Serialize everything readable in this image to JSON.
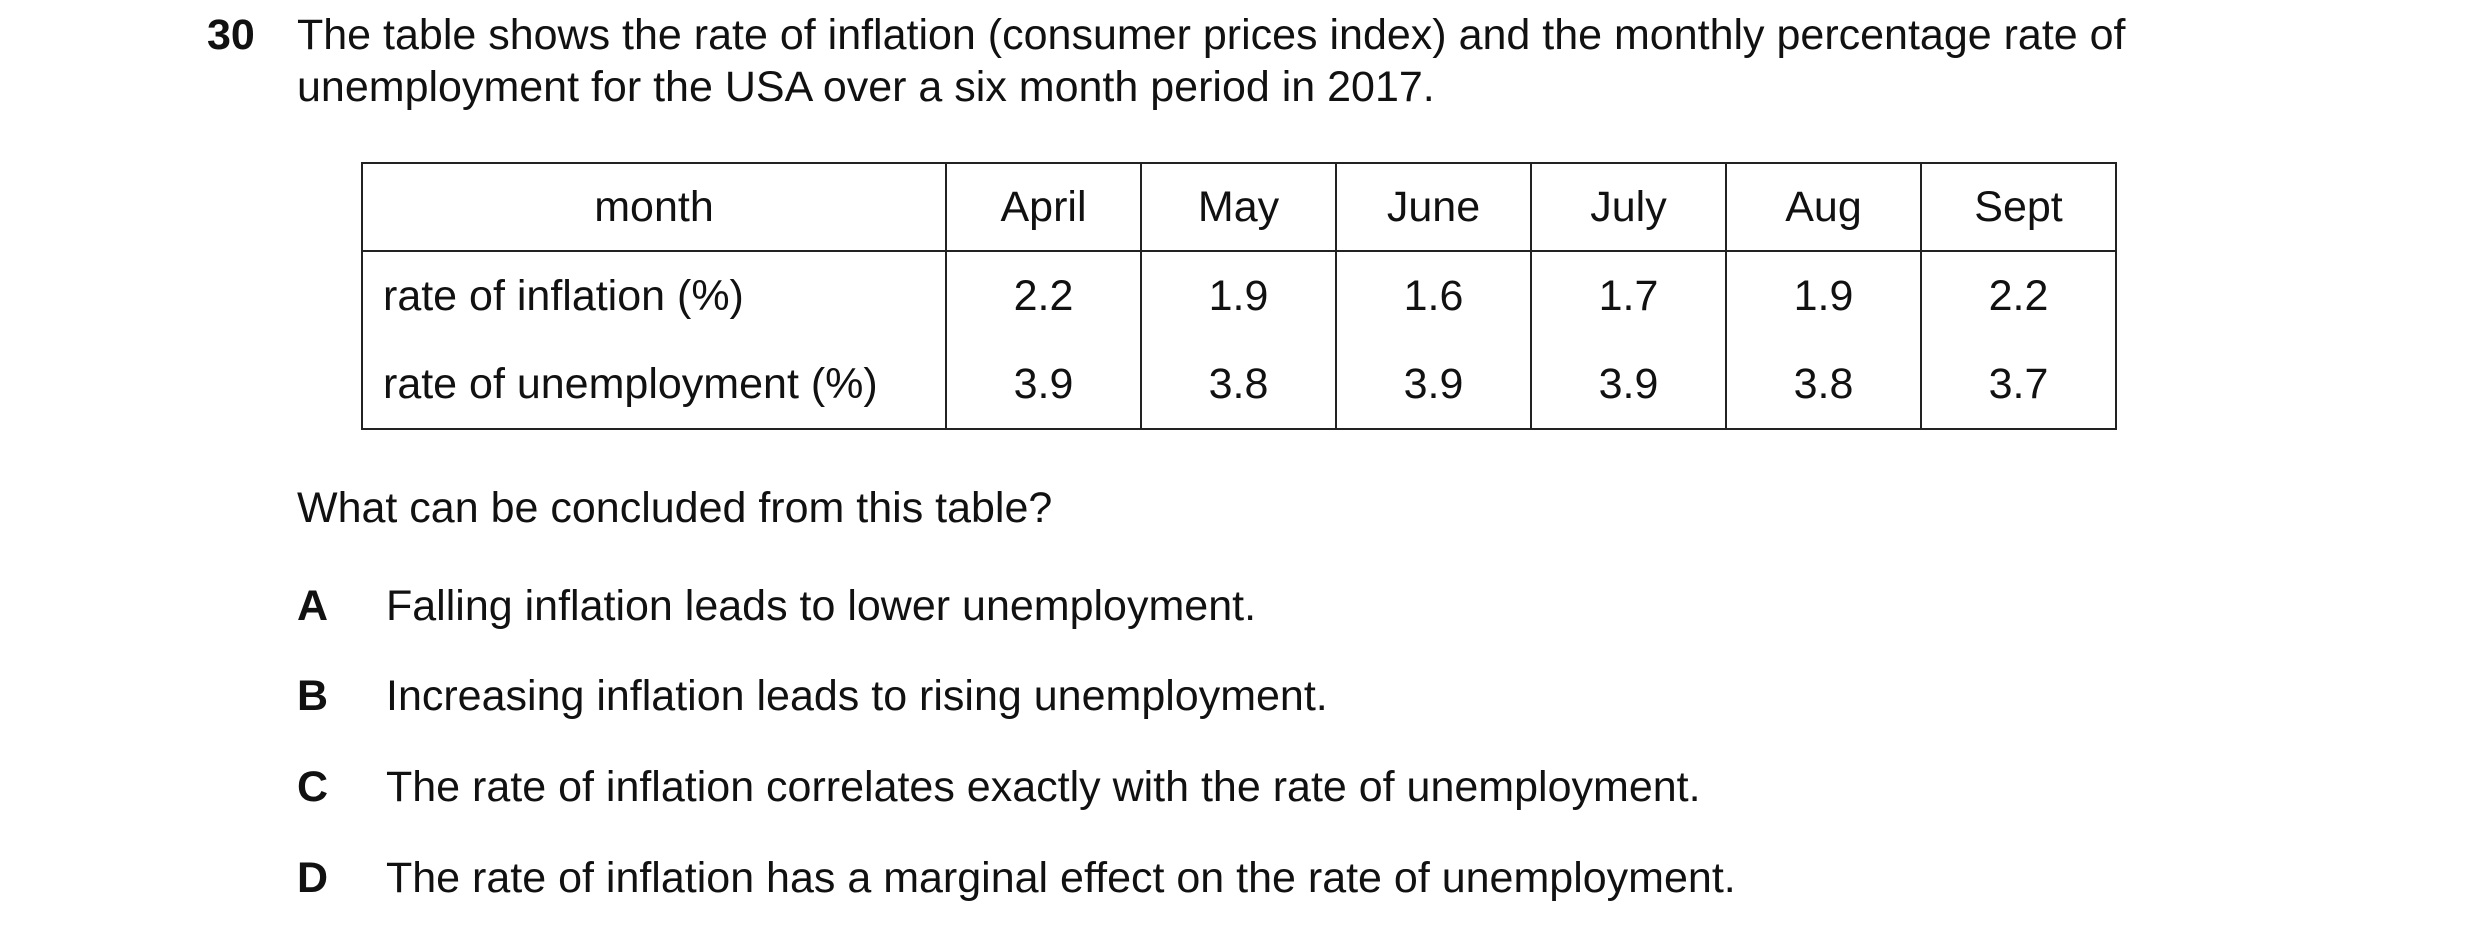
{
  "question": {
    "number": "30",
    "stem": [
      "The table shows the rate of inflation (consumer prices index) and the monthly percentage rate of",
      "unemployment for the USA over a six month period in 2017."
    ]
  },
  "table": {
    "header": [
      "month",
      "April",
      "May",
      "June",
      "July",
      "Aug",
      "Sept"
    ],
    "rows": [
      [
        "rate of inflation (%)",
        2.2,
        1.9,
        1.6,
        1.7,
        1.9,
        2.2
      ],
      [
        "rate of unemployment (%)",
        3.9,
        3.8,
        3.9,
        3.9,
        3.8,
        3.7
      ]
    ]
  },
  "prompt": "What can be concluded from this table?",
  "options": [
    {
      "letter": "A",
      "text": "Falling inflation leads to lower unemployment."
    },
    {
      "letter": "B",
      "text": "Increasing inflation leads to rising unemployment."
    },
    {
      "letter": "C",
      "text": "The rate of inflation correlates exactly with the rate of unemployment."
    },
    {
      "letter": "D",
      "text": "The rate of inflation has a marginal effect on the rate of unemployment."
    }
  ]
}
